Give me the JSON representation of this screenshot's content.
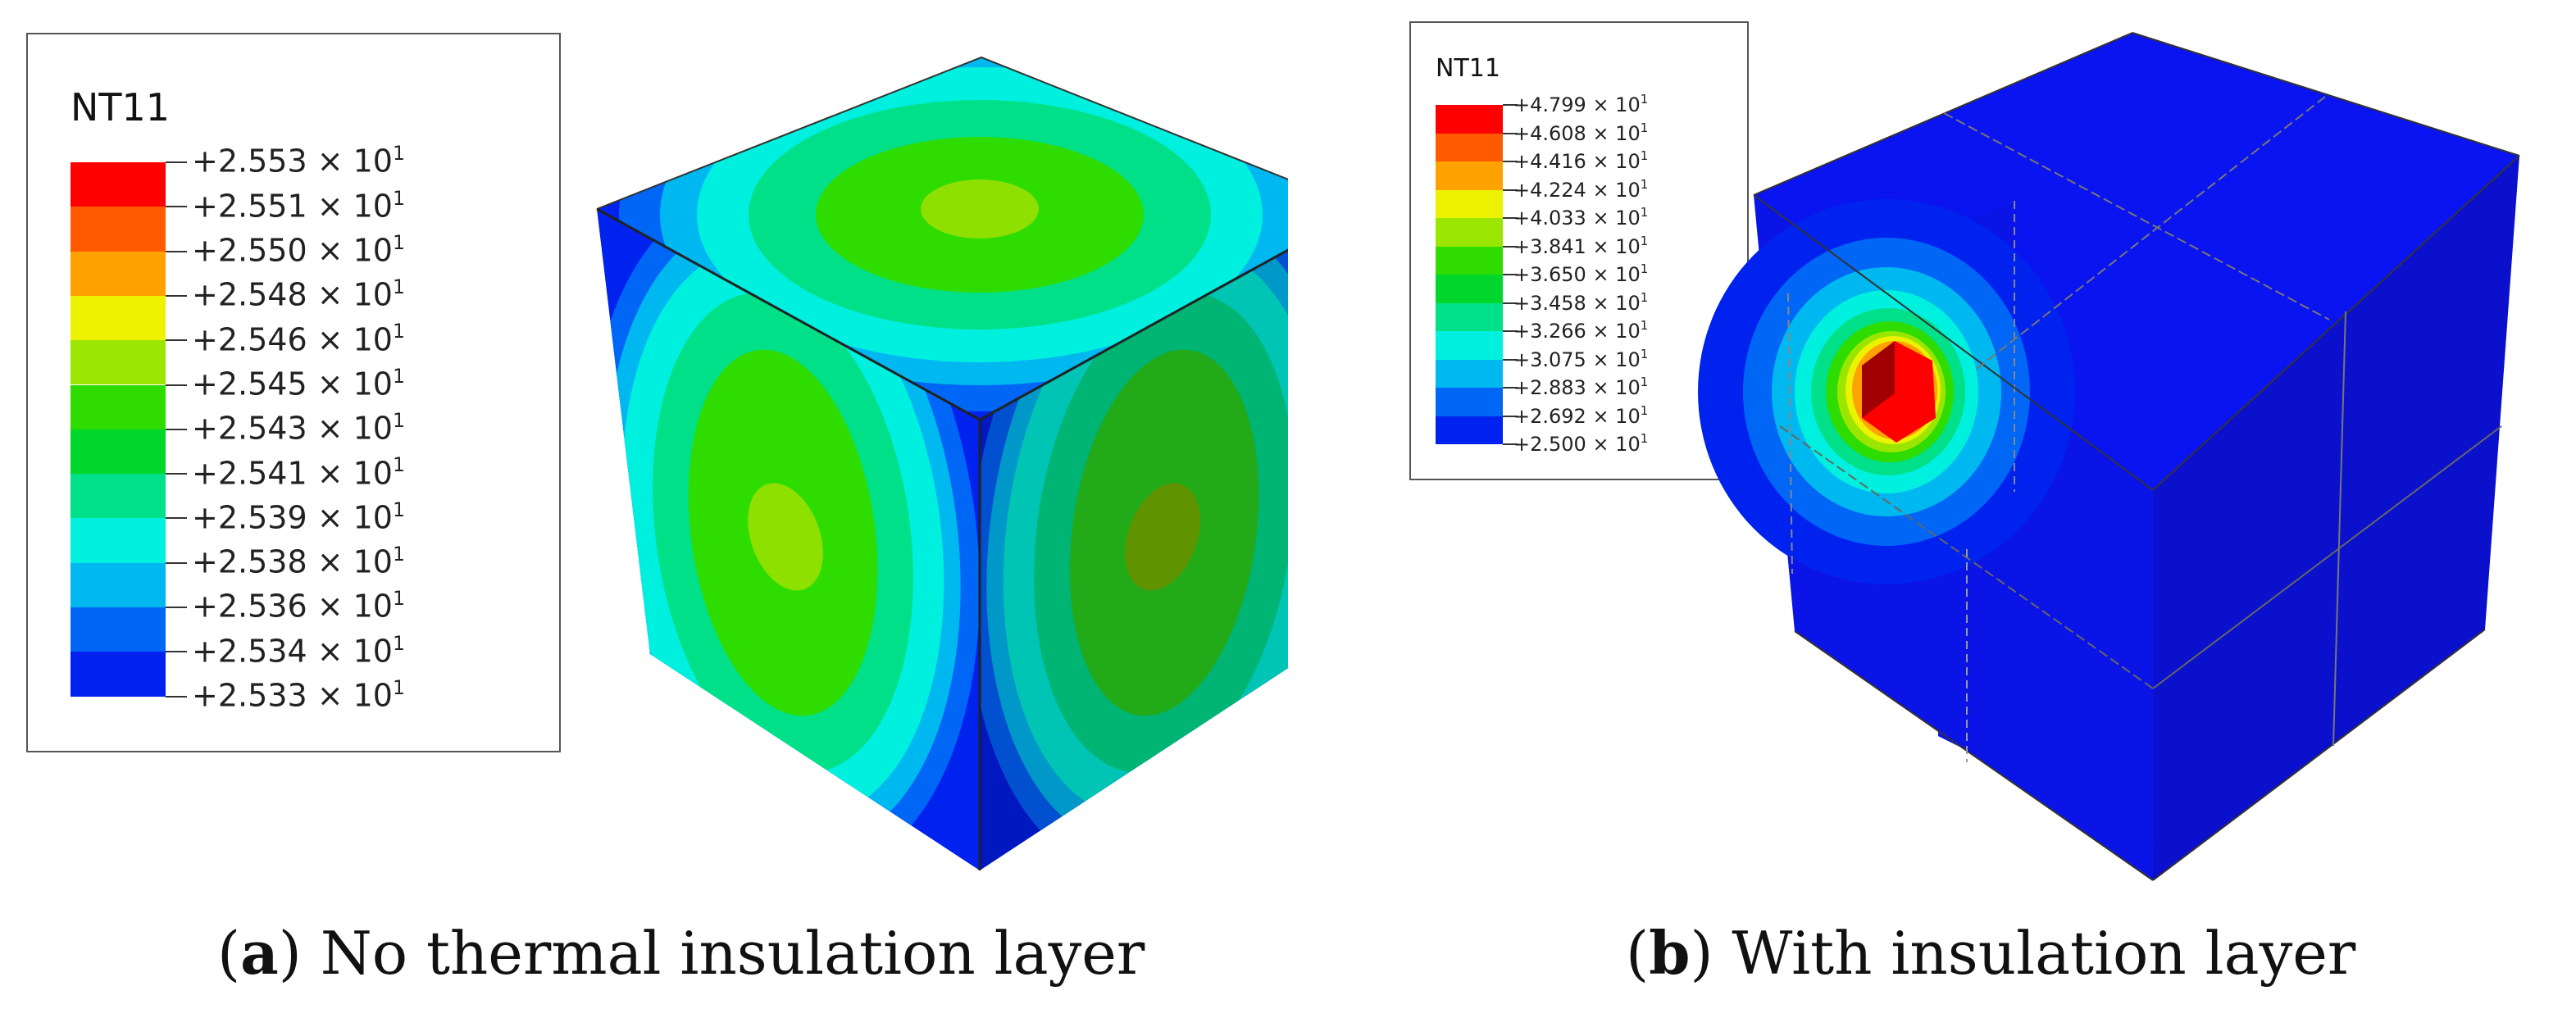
{
  "panel_a": {
    "legend": {
      "title": "NT11",
      "entries": [
        {
          "value": "+2.553",
          "color": "#ff0000"
        },
        {
          "value": "+2.551",
          "color": "#ff5a00"
        },
        {
          "value": "+2.550",
          "color": "#ffa200"
        },
        {
          "value": "+2.548",
          "color": "#ecf200"
        },
        {
          "value": "+2.546",
          "color": "#9be600"
        },
        {
          "value": "+2.545",
          "color": "#2edc00"
        },
        {
          "value": "+2.543",
          "color": "#00d62c"
        },
        {
          "value": "+2.541",
          "color": "#00e089"
        },
        {
          "value": "+2.539",
          "color": "#00f0e0"
        },
        {
          "value": "+2.538",
          "color": "#00b8f0"
        },
        {
          "value": "+2.536",
          "color": "#0066f5"
        },
        {
          "value": "+2.534",
          "color": "#0022ef"
        },
        {
          "value": "+2.533",
          "color": null
        }
      ],
      "multiplier": "× 10",
      "exponent": "1"
    },
    "caption_letter": "a",
    "caption_text": " No thermal insulation layer"
  },
  "panel_b": {
    "legend": {
      "title": "NT11",
      "entries": [
        {
          "value": "+4.799",
          "color": "#ff0000"
        },
        {
          "value": "+4.608",
          "color": "#ff5a00"
        },
        {
          "value": "+4.416",
          "color": "#ffa200"
        },
        {
          "value": "+4.224",
          "color": "#ecf200"
        },
        {
          "value": "+4.033",
          "color": "#9be600"
        },
        {
          "value": "+3.841",
          "color": "#2edc00"
        },
        {
          "value": "+3.650",
          "color": "#00d62c"
        },
        {
          "value": "+3.458",
          "color": "#00e089"
        },
        {
          "value": "+3.266",
          "color": "#00f0e0"
        },
        {
          "value": "+3.075",
          "color": "#00b8f0"
        },
        {
          "value": "+2.883",
          "color": "#0066f5"
        },
        {
          "value": "+2.692",
          "color": "#0022ef"
        },
        {
          "value": "+2.500",
          "color": null
        }
      ],
      "multiplier": "× 10",
      "exponent": "1"
    },
    "caption_letter": "b",
    "caption_text": " With insulation layer"
  }
}
